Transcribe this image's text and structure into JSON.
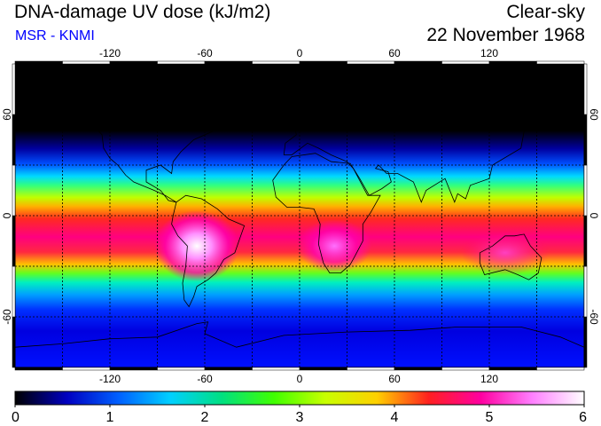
{
  "header": {
    "title": "DNA-damage UV dose (kJ/m2)",
    "source": "MSR - KNMI",
    "condition": "Clear-sky",
    "date": "22 November 1968"
  },
  "map": {
    "projection": "equirectangular",
    "lon_range": [
      -180,
      180
    ],
    "lat_range": [
      -90,
      90
    ],
    "lon_ticks": [
      "-120",
      "-60",
      "0",
      "60",
      "120"
    ],
    "lat_ticks": [
      "60",
      "0",
      "-60"
    ],
    "grid_spacing_deg": 30,
    "grid_style": "dashed",
    "field": "dna_damage_uv_dose",
    "field_units": "kJ/m2"
  },
  "colorbar": {
    "min": 0,
    "max": 6,
    "labels": [
      "0",
      "1",
      "2",
      "3",
      "4",
      "5",
      "6"
    ],
    "stops": [
      "#000000",
      "#0000c0",
      "#0060ff",
      "#00d0ff",
      "#00e080",
      "#40ff00",
      "#c8ff00",
      "#ffd000",
      "#ff2020",
      "#ff00a0",
      "#ff80ff",
      "#ffffff"
    ]
  }
}
